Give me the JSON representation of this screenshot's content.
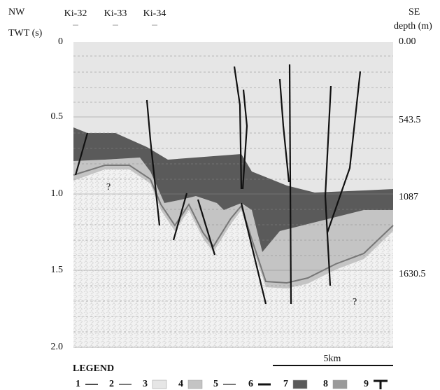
{
  "header": {
    "left_direction": "NW",
    "right_direction": "SE",
    "left_axis_title": "TWT (s)",
    "right_axis_title": "depth (m)",
    "wells": [
      "Ki-32",
      "Ki-33",
      "Ki-34"
    ]
  },
  "left_axis": {
    "ticks": [
      "0",
      "0.5",
      "1.0",
      "1.5",
      "2.0"
    ]
  },
  "right_axis": {
    "ticks": [
      "0.00",
      "543.5",
      "1087",
      "1630.5"
    ]
  },
  "annotations": [
    "?",
    "?"
  ],
  "scale_bar": "5km",
  "legend": {
    "title": "LEGEND",
    "items": [
      "1",
      "2",
      "3",
      "4",
      "5",
      "6",
      "7",
      "8",
      "9"
    ]
  }
}
